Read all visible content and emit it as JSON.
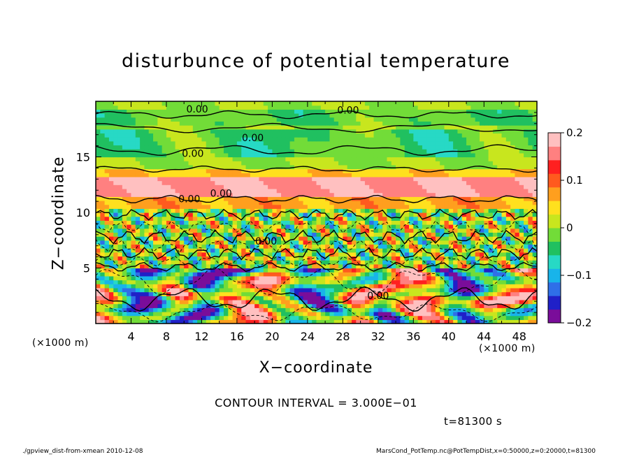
{
  "chart_data": {
    "type": "heatmap",
    "title": "disturbunce of potential temperature",
    "xlabel": "X−coordinate",
    "ylabel": "Z−coordinate",
    "x_unit_label": "(×1000 m)",
    "z_unit_label": "(×1000 m)",
    "xlim": [
      0,
      50
    ],
    "zlim": [
      0,
      20
    ],
    "x_ticks": [
      "4",
      "8",
      "12",
      "16",
      "20",
      "24",
      "28",
      "32",
      "36",
      "40",
      "44",
      "48"
    ],
    "z_ticks": [
      "5",
      "10",
      "15"
    ],
    "colorbar": {
      "range": [
        -0.2,
        0.2
      ],
      "tick_labels": [
        "0.2",
        "0.1",
        "0",
        "−0.1",
        "−0.2"
      ],
      "colors": [
        "#7a0d9a",
        "#2020c8",
        "#2f6fe8",
        "#18b4ea",
        "#27d9c5",
        "#20c060",
        "#72dc38",
        "#c8e61e",
        "#ffe01e",
        "#ff9f1e",
        "#ff5a1e",
        "#ff2020",
        "#ff8080",
        "#ffc0c0"
      ]
    },
    "contour_labels": [
      "0.00",
      "0.00",
      "0.00",
      "0.00",
      "0.00",
      "0.00",
      "0.00",
      "0.00"
    ],
    "contour_interval_text": "CONTOUR INTERVAL = 3.000E−01",
    "time_text": "t=81300 s"
  },
  "footer": {
    "left": "./gpview_dist-from-xmean   2010-12-08",
    "right": "MarsCond_PotTemp.nc@PotTempDist,x=0:50000,z=0:20000,t=81300"
  }
}
